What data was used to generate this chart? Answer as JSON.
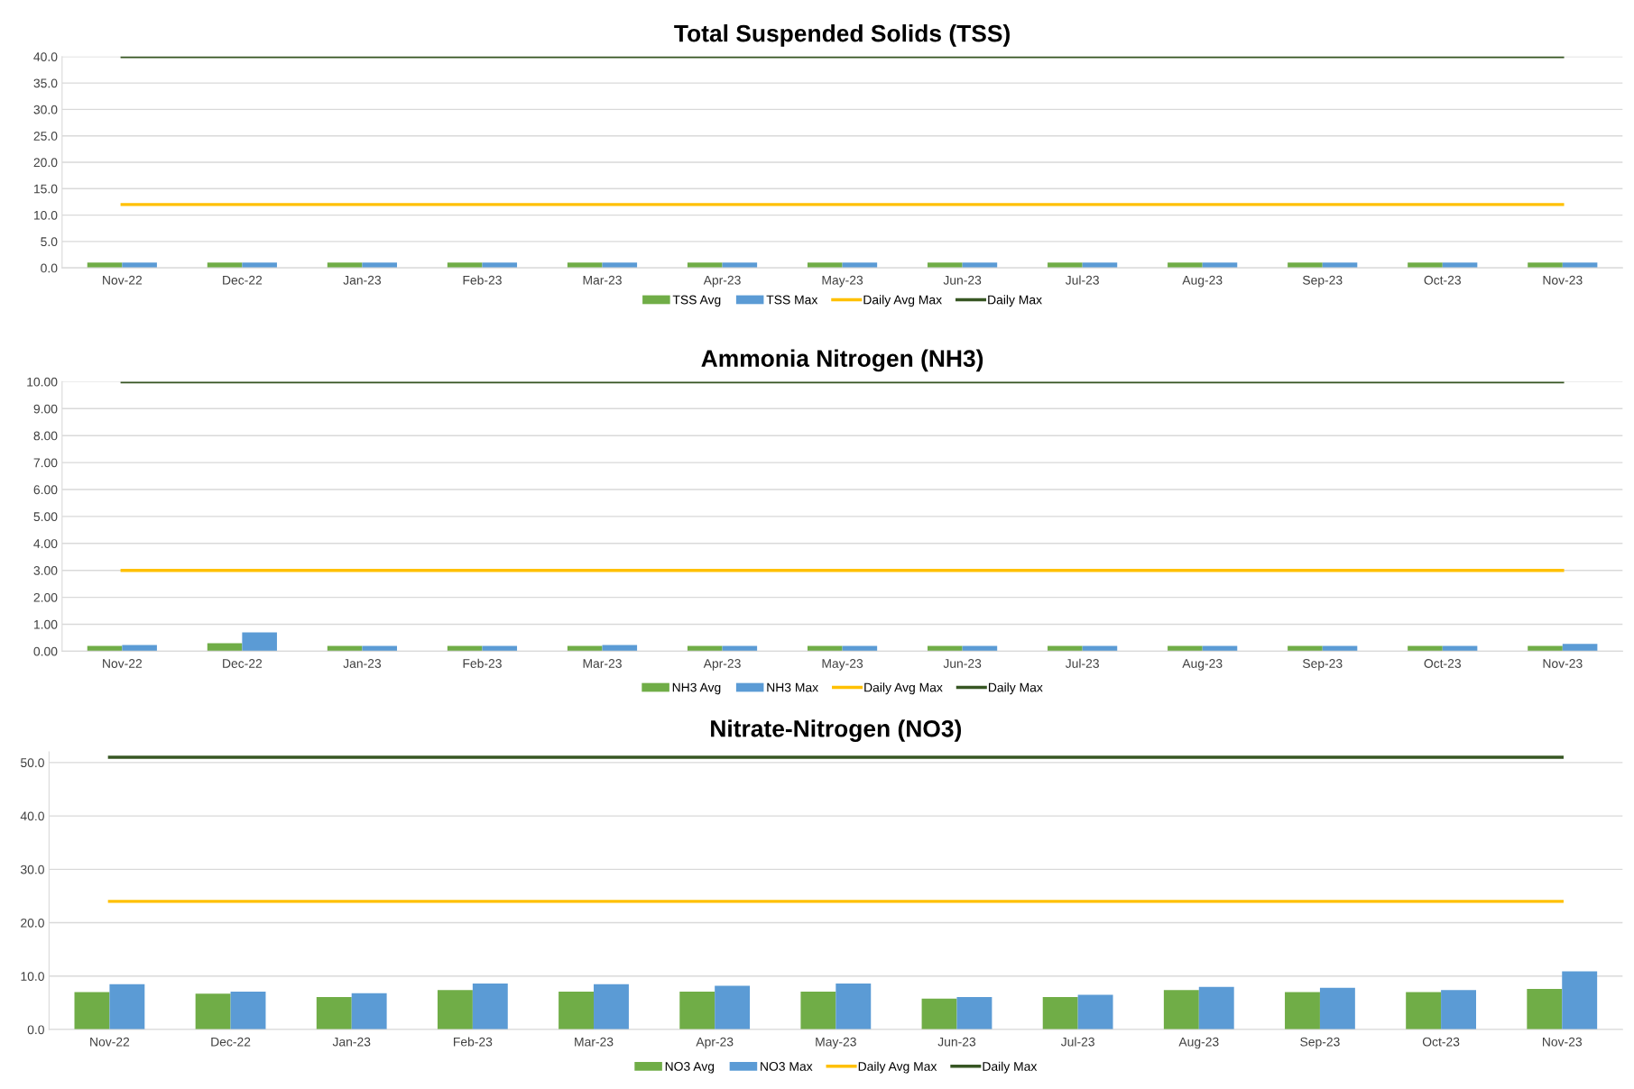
{
  "chart_data": [
    {
      "type": "bar",
      "title": "Total Suspended Solids (TSS)",
      "categories": [
        "Nov-22",
        "Dec-22",
        "Jan-23",
        "Feb-23",
        "Mar-23",
        "Apr-23",
        "May-23",
        "Jun-23",
        "Jul-23",
        "Aug-23",
        "Sep-23",
        "Oct-23",
        "Nov-23"
      ],
      "ylim": [
        0,
        40
      ],
      "yticks": [
        {
          "value": 0,
          "label": "0.0"
        },
        {
          "value": 5,
          "label": "5.0"
        },
        {
          "value": 10,
          "label": "10.0"
        },
        {
          "value": 15,
          "label": "15.0"
        },
        {
          "value": 20,
          "label": "20.0"
        },
        {
          "value": 25,
          "label": "25.0"
        },
        {
          "value": 30,
          "label": "30.0"
        },
        {
          "value": 35,
          "label": "35.0"
        },
        {
          "value": 40,
          "label": "40.0"
        }
      ],
      "grid": "y",
      "legend": "bottom",
      "series": [
        {
          "name": "TSS Avg",
          "color": "#70ad47",
          "values": [
            1,
            1,
            1,
            1,
            1,
            1,
            1,
            1,
            1,
            1,
            1,
            1,
            1
          ]
        },
        {
          "name": "TSS Max",
          "color": "#5b9bd5",
          "values": [
            1,
            1,
            1,
            1,
            1,
            1,
            1,
            1,
            1,
            1,
            1,
            1,
            1
          ]
        },
        {
          "name": "Daily Avg Max",
          "type": "line",
          "color": "#ffc000",
          "values": [
            12,
            12,
            12,
            12,
            12,
            12,
            12,
            12,
            12,
            12,
            12,
            12,
            12
          ]
        },
        {
          "name": "Daily Max",
          "type": "line",
          "color": "#375623",
          "values": [
            40,
            40,
            40,
            40,
            40,
            40,
            40,
            40,
            40,
            40,
            40,
            40,
            40
          ]
        }
      ]
    },
    {
      "type": "bar",
      "title": "Ammonia Nitrogen (NH3)",
      "categories": [
        "Nov-22",
        "Dec-22",
        "Jan-23",
        "Feb-23",
        "Mar-23",
        "Apr-23",
        "May-23",
        "Jun-23",
        "Jul-23",
        "Aug-23",
        "Sep-23",
        "Oct-23",
        "Nov-23"
      ],
      "ylim": [
        0,
        10
      ],
      "yticks": [
        {
          "value": 0,
          "label": "0.00"
        },
        {
          "value": 1,
          "label": "1.00"
        },
        {
          "value": 2,
          "label": "2.00"
        },
        {
          "value": 3,
          "label": "3.00"
        },
        {
          "value": 4,
          "label": "4.00"
        },
        {
          "value": 5,
          "label": "5.00"
        },
        {
          "value": 6,
          "label": "6.00"
        },
        {
          "value": 7,
          "label": "7.00"
        },
        {
          "value": 8,
          "label": "8.00"
        },
        {
          "value": 9,
          "label": "9.00"
        },
        {
          "value": 10,
          "label": "10.00"
        }
      ],
      "grid": "y",
      "legend": "bottom",
      "series": [
        {
          "name": "NH3 Avg",
          "color": "#70ad47",
          "values": [
            0.2,
            0.3,
            0.2,
            0.2,
            0.2,
            0.2,
            0.2,
            0.2,
            0.2,
            0.2,
            0.2,
            0.2,
            0.2
          ]
        },
        {
          "name": "NH3 Max",
          "color": "#5b9bd5",
          "values": [
            0.23,
            0.7,
            0.2,
            0.2,
            0.23,
            0.2,
            0.2,
            0.2,
            0.2,
            0.2,
            0.2,
            0.2,
            0.27
          ]
        },
        {
          "name": "Daily Avg Max",
          "type": "line",
          "color": "#ffc000",
          "values": [
            3,
            3,
            3,
            3,
            3,
            3,
            3,
            3,
            3,
            3,
            3,
            3,
            3
          ]
        },
        {
          "name": "Daily Max",
          "type": "line",
          "color": "#375623",
          "values": [
            10,
            10,
            10,
            10,
            10,
            10,
            10,
            10,
            10,
            10,
            10,
            10,
            10
          ]
        }
      ]
    },
    {
      "type": "bar",
      "title": "Nitrate-Nitrogen (NO3)",
      "categories": [
        "Nov-22",
        "Dec-22",
        "Jan-23",
        "Feb-23",
        "Mar-23",
        "Apr-23",
        "May-23",
        "Jun-23",
        "Jul-23",
        "Aug-23",
        "Sep-23",
        "Oct-23",
        "Nov-23"
      ],
      "ylim": [
        0,
        52
      ],
      "yticks": [
        {
          "value": 0,
          "label": "0.0"
        },
        {
          "value": 10,
          "label": "10.0"
        },
        {
          "value": 20,
          "label": "20.0"
        },
        {
          "value": 30,
          "label": "30.0"
        },
        {
          "value": 40,
          "label": "40.0"
        },
        {
          "value": 50,
          "label": "50.0"
        }
      ],
      "grid": "y",
      "legend": "bottom",
      "series": [
        {
          "name": "NO3 Avg",
          "color": "#70ad47",
          "values": [
            7.0,
            6.7,
            6.1,
            7.4,
            7.1,
            7.1,
            7.1,
            5.8,
            6.1,
            7.4,
            7.0,
            7.0,
            7.6
          ]
        },
        {
          "name": "NO3 Max",
          "color": "#5b9bd5",
          "values": [
            8.5,
            7.1,
            6.8,
            8.6,
            8.5,
            8.2,
            8.6,
            6.1,
            6.5,
            8.0,
            7.8,
            7.4,
            10.9
          ]
        },
        {
          "name": "Daily Avg Max",
          "type": "line",
          "color": "#ffc000",
          "values": [
            24,
            24,
            24,
            24,
            24,
            24,
            24,
            24,
            24,
            24,
            24,
            24,
            24
          ]
        },
        {
          "name": "Daily Max",
          "type": "line",
          "color": "#375623",
          "values": [
            51,
            51,
            51,
            51,
            51,
            51,
            51,
            51,
            51,
            51,
            51,
            51,
            51
          ]
        }
      ]
    }
  ]
}
